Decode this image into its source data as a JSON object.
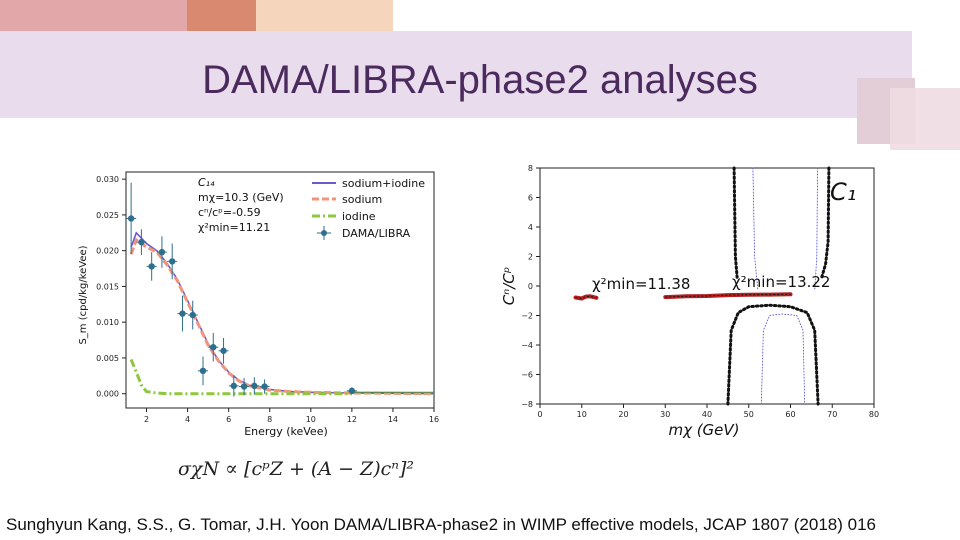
{
  "slide": {
    "title": "DAMA/LIBRA-phase2 analyses",
    "formula": "σχN ∝ [cᵖZ + (A − Z)cⁿ]²",
    "citation": "Sunghyun Kang, S.S., G. Tomar, J.H. Yoon  DAMA/LIBRA-phase2 in WIMP effective models, JCAP 1807 (2018) 016",
    "colors": {
      "title": "#4b2a5e",
      "band": "#e9dcec",
      "accent1": "#e2a7a8",
      "accent2": "#d9896f",
      "accent3": "#f5d6bd"
    }
  },
  "chart_data": [
    {
      "type": "scatter",
      "xlabel": "Energy (keVee)",
      "ylabel": "S_m  (cpd/kg/keVee)",
      "xlim": [
        1,
        16
      ],
      "ylim": [
        -0.002,
        0.031
      ],
      "xticks": [
        "2",
        "4",
        "6",
        "8",
        "10",
        "12",
        "14",
        "16"
      ],
      "yticks": [
        "0.000",
        "0.005",
        "0.010",
        "0.015",
        "0.020",
        "0.025",
        "0.030"
      ],
      "xtick_values": [
        2,
        4,
        6,
        8,
        10,
        12,
        14,
        16
      ],
      "ytick_values": [
        0,
        0.005,
        0.01,
        0.015,
        0.02,
        0.025,
        0.03
      ],
      "annotations": [
        "C₁₄",
        "mχ=10.3 (GeV)",
        "cⁿ/cᵖ=-0.59",
        "χ²min=11.21"
      ],
      "legend_position": "top-right",
      "legend": [
        "sodium+iodine",
        "sodium",
        "iodine",
        "DAMA/LIBRA"
      ],
      "series": [
        {
          "name": "DAMA/LIBRA",
          "color": "#2e6f8e",
          "x": [
            1.25,
            1.75,
            2.25,
            2.75,
            3.25,
            3.75,
            4.25,
            4.75,
            5.25,
            5.75,
            6.25,
            6.75,
            7.25,
            7.75,
            12.0
          ],
          "y": [
            0.0245,
            0.0212,
            0.0178,
            0.0198,
            0.0185,
            0.0112,
            0.011,
            0.0032,
            0.0065,
            0.006,
            0.0011,
            0.001,
            0.0011,
            0.001,
            0.0004
          ],
          "err": [
            0.005,
            0.0018,
            0.002,
            0.0022,
            0.0025,
            0.0025,
            0.002,
            0.002,
            0.002,
            0.0018,
            0.0015,
            0.0012,
            0.0012,
            0.001,
            0.0005
          ]
        },
        {
          "name": "sodium+iodine",
          "color": "#6a5acd",
          "x": [
            1.25,
            1.5,
            2,
            2.5,
            3,
            3.5,
            4,
            4.5,
            5,
            5.5,
            6,
            6.5,
            7,
            8,
            9,
            10,
            12,
            16
          ],
          "y": [
            0.0205,
            0.0225,
            0.021,
            0.02,
            0.0182,
            0.016,
            0.013,
            0.01,
            0.007,
            0.0047,
            0.003,
            0.0019,
            0.0012,
            0.0006,
            0.0003,
            0.0002,
            0.0001,
            0.0
          ]
        },
        {
          "name": "sodium",
          "color": "#f0947b",
          "x": [
            1.25,
            1.5,
            2,
            2.5,
            3,
            3.5,
            4,
            4.5,
            5,
            5.5,
            6,
            6.5,
            7,
            8,
            9,
            10,
            12,
            16
          ],
          "y": [
            0.0195,
            0.0215,
            0.0205,
            0.0198,
            0.018,
            0.0158,
            0.0128,
            0.0098,
            0.0068,
            0.0046,
            0.0029,
            0.0018,
            0.0011,
            0.0005,
            0.0003,
            0.0002,
            0.0001,
            0.0
          ]
        },
        {
          "name": "iodine",
          "color": "#8dc63f",
          "x": [
            1.25,
            1.5,
            1.75,
            2,
            2.5,
            3,
            4,
            6,
            8,
            10,
            12
          ],
          "y": [
            0.0048,
            0.003,
            0.0012,
            0.0003,
            0.0001,
            0.0,
            0.0,
            0.0,
            0.0,
            0.0,
            0.0
          ]
        }
      ]
    },
    {
      "type": "line",
      "xlabel": "mχ (GeV)",
      "ylabel": "Cⁿ/Cᵖ",
      "xlim": [
        0,
        80
      ],
      "ylim": [
        -8,
        8
      ],
      "xticks": [
        "0",
        "10",
        "20",
        "30",
        "40",
        "50",
        "60",
        "70",
        "80"
      ],
      "yticks": [
        "8",
        "6",
        "4",
        "2",
        "0",
        "−2",
        "−4",
        "−6",
        "−8"
      ],
      "xtick_values": [
        0,
        10,
        20,
        30,
        40,
        50,
        60,
        70,
        80
      ],
      "ytick_values": [
        8,
        6,
        4,
        2,
        0,
        -2,
        -4,
        -6,
        -8
      ],
      "annotations": [
        "C₁",
        "χ²min=11.38",
        "χ²min=13.22"
      ],
      "series": [
        {
          "name": "",
          "style": "dotted-black",
          "x": [
            46.5,
            46.8,
            47.2
          ],
          "y": [
            8,
            2,
            0.6
          ]
        },
        {
          "name": "",
          "style": "dotted-black",
          "x": [
            69.2,
            69.0,
            68.4,
            67.5
          ],
          "y": [
            8,
            3,
            1.5,
            0.6
          ]
        },
        {
          "name": "",
          "style": "dotted-black",
          "x": [
            45,
            45.8,
            47.5,
            50,
            55,
            60,
            64,
            65.8,
            66.6
          ],
          "y": [
            -8,
            -3,
            -1.8,
            -1.4,
            -1.3,
            -1.4,
            -1.8,
            -3,
            -8
          ]
        },
        {
          "name": "",
          "style": "dotted-blue",
          "x": [
            51,
            51.4,
            52.2
          ],
          "y": [
            8,
            2,
            -0.3
          ]
        },
        {
          "name": "",
          "style": "dotted-blue",
          "x": [
            66.5,
            66.3,
            65.8
          ],
          "y": [
            8,
            2,
            -0.3
          ]
        },
        {
          "name": "",
          "style": "dotted-blue",
          "x": [
            53,
            53.5,
            55,
            58,
            61.5,
            63,
            63.4
          ],
          "y": [
            -8,
            -3,
            -2,
            -1.9,
            -2,
            -3,
            -8
          ]
        },
        {
          "name": "",
          "style": "filled-red",
          "x": [
            8.5,
            10,
            11,
            12,
            13.5
          ],
          "y": [
            -0.78,
            -0.85,
            -0.72,
            -0.7,
            -0.8
          ]
        },
        {
          "name": "",
          "style": "filled-red",
          "x": [
            30,
            35,
            40,
            45,
            50,
            55,
            60
          ],
          "y": [
            -0.75,
            -0.7,
            -0.68,
            -0.62,
            -0.6,
            -0.58,
            -0.56
          ]
        }
      ]
    }
  ]
}
